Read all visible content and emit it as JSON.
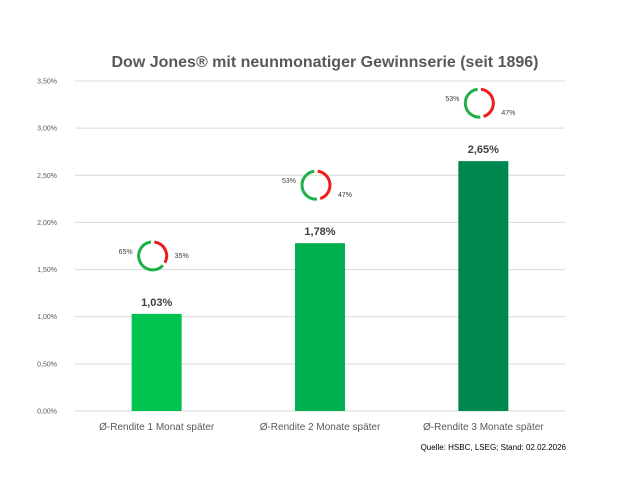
{
  "chart_data": {
    "type": "bar",
    "title": "Dow Jones® mit neunmonatiger Gewinnserie (seit 1896)",
    "categories": [
      "Ø-Rendite 1 Monat später",
      "Ø-Rendite 2 Monate später",
      "Ø-Rendite 3 Monate später"
    ],
    "values": [
      1.03,
      1.78,
      2.65
    ],
    "data_labels": [
      "1,03%",
      "1,78%",
      "2,65%"
    ],
    "bar_colors": [
      "#00c44f",
      "#00b050",
      "#00874f"
    ],
    "ylim": [
      0,
      3.5
    ],
    "yticks": [
      0,
      0.5,
      1,
      1.5,
      2,
      2.5,
      3,
      3.5
    ],
    "ytick_labels": [
      "0,00%",
      "0,50%",
      "1,00%",
      "1,50%",
      "2,00%",
      "2,50%",
      "3,00%",
      "3,50%"
    ],
    "grid": true,
    "donuts": [
      {
        "positive": 65,
        "negative": 35,
        "positive_label": "65%",
        "negative_label": "35%"
      },
      {
        "positive": 53,
        "negative": 47,
        "positive_label": "53%",
        "negative_label": "47%"
      },
      {
        "positive": 53,
        "negative": 47,
        "positive_label": "53%",
        "negative_label": "47%"
      }
    ],
    "donut_colors": {
      "positive": "#1fb04a",
      "negative": "#ee1c1c"
    },
    "source": "Quelle: HSBC, LSEG; Stand: 02.02.2026"
  }
}
